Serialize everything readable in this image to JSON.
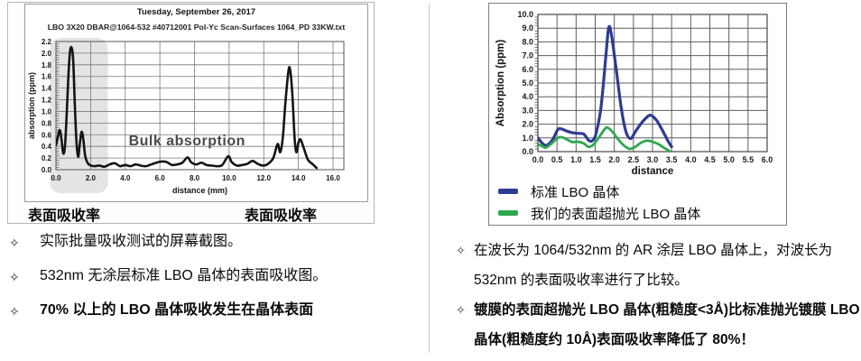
{
  "left_panel": {
    "surface_label_left": "表面吸收率",
    "surface_label_right": "表面吸收率",
    "bullets": [
      {
        "text": "实际批量吸收测试的屏幕截图。",
        "bold": false
      },
      {
        "text": "532nm 无涂层标准 LBO 晶体的表面吸收图。",
        "bold": false
      },
      {
        "text": "70% 以上的 LBO 晶体吸收发生在晶体表面",
        "bold": true
      }
    ],
    "bullet_icon": "✧"
  },
  "right_panel": {
    "legend": [
      {
        "label": "标准 LBO 晶体",
        "color": "#2e3b93"
      },
      {
        "label": "我们的表面超抛光 LBO 晶体",
        "color": "#2ea84d"
      }
    ],
    "bullets": [
      {
        "text": "在波长为 1064/532nm 的 AR 涂层 LBO 晶体上，对波长为 532nm 的表面吸收率进行了比较。",
        "bold": false
      },
      {
        "text": "镀膜的表面超抛光 LBO 晶体(粗糙度<3Å)比标准抛光镀膜 LBO 晶体(粗糙度约 10Å)表面吸收率降低了 80%！",
        "bold": true
      }
    ],
    "bullet_icon": "✧"
  },
  "chart_data": [
    {
      "type": "line",
      "title": "Tuesday, September 26, 2017",
      "subtitle": "LBO 3X20 DBAR@1064-532 #40712001 Pol-Yc Scan-Surfaces 1064_PD 33KW.txt",
      "xlabel": "distance (mm)",
      "ylabel": "absorption (ppm)",
      "xlim": [
        0,
        16
      ],
      "ylim": [
        0,
        2.2
      ],
      "x_major": 2,
      "y_major": 0.2,
      "y_minor": 0.04,
      "grid": true,
      "highlight_region": {
        "x0": -0.35,
        "x1": 3.0
      },
      "annotation": {
        "text": "Bulk absorption",
        "x": 4.2,
        "y": 0.42
      },
      "series": [
        {
          "name": "absorption",
          "color": "#141414",
          "points": [
            [
              0,
              0.42
            ],
            [
              0.1,
              0.55
            ],
            [
              0.22,
              0.68
            ],
            [
              0.32,
              0.52
            ],
            [
              0.42,
              0.28
            ],
            [
              0.52,
              0.4
            ],
            [
              0.62,
              0.95
            ],
            [
              0.72,
              1.62
            ],
            [
              0.82,
              2.05
            ],
            [
              0.92,
              2.08
            ],
            [
              1.0,
              1.85
            ],
            [
              1.08,
              1.2
            ],
            [
              1.18,
              0.5
            ],
            [
              1.28,
              0.22
            ],
            [
              1.38,
              0.45
            ],
            [
              1.48,
              0.65
            ],
            [
              1.58,
              0.52
            ],
            [
              1.68,
              0.25
            ],
            [
              1.8,
              0.13
            ],
            [
              1.95,
              0.08
            ],
            [
              2.2,
              0.06
            ],
            [
              2.5,
              0.07
            ],
            [
              2.8,
              0.05
            ],
            [
              3.1,
              0.09
            ],
            [
              3.4,
              0.11
            ],
            [
              3.7,
              0.06
            ],
            [
              4.0,
              0.08
            ],
            [
              4.3,
              0.06
            ],
            [
              4.6,
              0.09
            ],
            [
              4.9,
              0.07
            ],
            [
              5.2,
              0.06
            ],
            [
              5.5,
              0.09
            ],
            [
              5.8,
              0.12
            ],
            [
              6.1,
              0.14
            ],
            [
              6.4,
              0.13
            ],
            [
              6.7,
              0.08
            ],
            [
              7.0,
              0.09
            ],
            [
              7.3,
              0.12
            ],
            [
              7.6,
              0.21
            ],
            [
              7.8,
              0.13
            ],
            [
              8.1,
              0.09
            ],
            [
              8.4,
              0.12
            ],
            [
              8.7,
              0.08
            ],
            [
              9.0,
              0.07
            ],
            [
              9.3,
              0.06
            ],
            [
              9.6,
              0.08
            ],
            [
              9.95,
              0.23
            ],
            [
              10.15,
              0.13
            ],
            [
              10.45,
              0.07
            ],
            [
              10.75,
              0.08
            ],
            [
              11.05,
              0.1
            ],
            [
              11.35,
              0.15
            ],
            [
              11.65,
              0.1
            ],
            [
              11.95,
              0.07
            ],
            [
              12.25,
              0.1
            ],
            [
              12.55,
              0.2
            ],
            [
              12.8,
              0.44
            ],
            [
              12.95,
              0.3
            ],
            [
              13.1,
              0.55
            ],
            [
              13.25,
              1.15
            ],
            [
              13.42,
              1.68
            ],
            [
              13.52,
              1.72
            ],
            [
              13.65,
              1.3
            ],
            [
              13.78,
              0.55
            ],
            [
              13.88,
              0.3
            ],
            [
              14.0,
              0.46
            ],
            [
              14.12,
              0.52
            ],
            [
              14.3,
              0.38
            ],
            [
              14.55,
              0.17
            ],
            [
              14.8,
              0.1
            ],
            [
              15.05,
              0.03
            ]
          ]
        }
      ]
    },
    {
      "type": "line",
      "title": "",
      "xlabel": "distance",
      "ylabel": "Absorption (ppm)",
      "xlim": [
        0,
        6
      ],
      "ylim": [
        0,
        10
      ],
      "x_major": 0.5,
      "y_major": 1,
      "y_minor": 0.2,
      "grid": true,
      "legend_position": "below",
      "series": [
        {
          "name": "标准 LBO 晶体",
          "color": "#2e3b93",
          "points": [
            [
              0,
              1.0
            ],
            [
              0.12,
              0.6
            ],
            [
              0.22,
              0.45
            ],
            [
              0.38,
              0.85
            ],
            [
              0.52,
              1.6
            ],
            [
              0.62,
              1.65
            ],
            [
              0.75,
              1.5
            ],
            [
              0.9,
              1.38
            ],
            [
              1.05,
              1.33
            ],
            [
              1.2,
              1.28
            ],
            [
              1.32,
              0.85
            ],
            [
              1.42,
              0.78
            ],
            [
              1.52,
              1.3
            ],
            [
              1.65,
              3.2
            ],
            [
              1.78,
              7.0
            ],
            [
              1.85,
              9.0
            ],
            [
              1.92,
              8.6
            ],
            [
              2.05,
              6.0
            ],
            [
              2.18,
              3.2
            ],
            [
              2.3,
              1.5
            ],
            [
              2.42,
              0.95
            ],
            [
              2.55,
              1.45
            ],
            [
              2.7,
              2.05
            ],
            [
              2.85,
              2.5
            ],
            [
              2.95,
              2.65
            ],
            [
              3.1,
              2.3
            ],
            [
              3.25,
              1.6
            ],
            [
              3.4,
              0.8
            ],
            [
              3.5,
              0.35
            ]
          ]
        },
        {
          "name": "我们的表面超抛光 LBO 晶体",
          "color": "#2ea84d",
          "points": [
            [
              0,
              0.55
            ],
            [
              0.12,
              0.38
            ],
            [
              0.22,
              0.3
            ],
            [
              0.38,
              0.65
            ],
            [
              0.52,
              1.0
            ],
            [
              0.62,
              1.05
            ],
            [
              0.75,
              0.9
            ],
            [
              0.9,
              0.7
            ],
            [
              1.05,
              0.72
            ],
            [
              1.2,
              0.6
            ],
            [
              1.32,
              0.35
            ],
            [
              1.45,
              0.5
            ],
            [
              1.6,
              1.05
            ],
            [
              1.75,
              1.65
            ],
            [
              1.82,
              1.75
            ],
            [
              1.95,
              1.45
            ],
            [
              2.1,
              0.9
            ],
            [
              2.25,
              0.45
            ],
            [
              2.4,
              0.2
            ],
            [
              2.55,
              0.35
            ],
            [
              2.7,
              0.65
            ],
            [
              2.85,
              0.8
            ],
            [
              3.0,
              0.72
            ],
            [
              3.15,
              0.55
            ],
            [
              3.3,
              0.28
            ],
            [
              3.45,
              0.03
            ]
          ]
        }
      ]
    }
  ]
}
